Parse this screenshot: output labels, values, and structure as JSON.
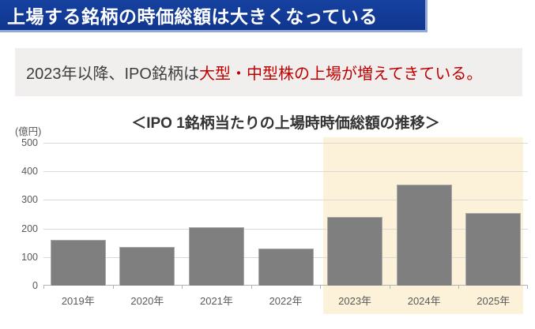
{
  "header": {
    "title": "上場する銘柄の時価総額は大きくなっている",
    "bg_color": "#11389e"
  },
  "subtitle": {
    "text_normal": "2023年以降、IPO銘柄は",
    "text_emphasis": "大型・中型株の上場が増えてきている。",
    "emphasis_color": "#c00000"
  },
  "chart_data": {
    "type": "bar",
    "title": "＜IPO 1銘柄当たりの上場時時価総額の推移＞",
    "unit_label": "(億円)",
    "categories": [
      "2019年",
      "2020年",
      "2021年",
      "2022年",
      "2023年",
      "2024年",
      "2025年"
    ],
    "values": [
      160,
      135,
      205,
      130,
      240,
      355,
      255
    ],
    "ylim": [
      0,
      500
    ],
    "yticks": [
      0,
      100,
      200,
      300,
      400,
      500
    ],
    "grid": true,
    "legend": false,
    "bar_color": "#7f7f7f",
    "highlight_region": {
      "categories": [
        "2023年",
        "2024年",
        "2025年"
      ],
      "color": "#fbf2d9"
    }
  }
}
